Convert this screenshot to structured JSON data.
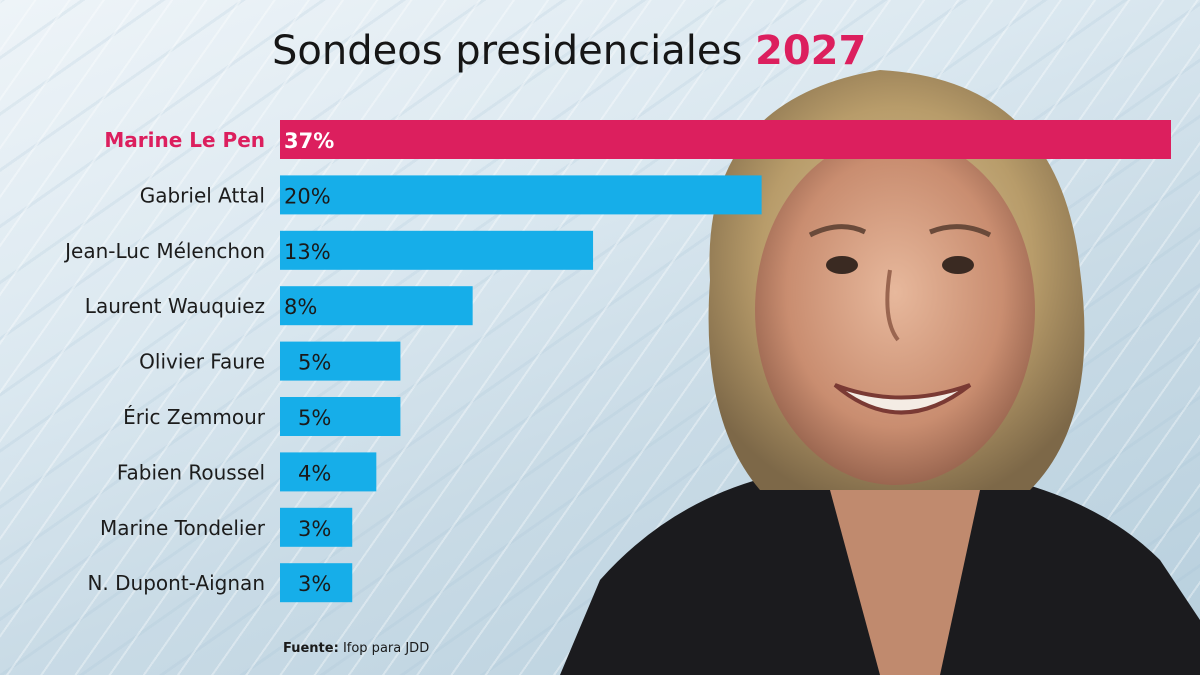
{
  "title": {
    "text": "Sondeos presidenciales",
    "highlight": "2027"
  },
  "source": {
    "label": "Fuente:",
    "text": "Ifop para JDD"
  },
  "colors": {
    "highlight": "#dc1f5e",
    "bar": "#16aee9",
    "label": "#1c1c1c"
  },
  "chart_data": {
    "type": "bar",
    "orientation": "horizontal",
    "categories": [
      "Marine Le Pen",
      "Gabriel Attal",
      "Jean-Luc Mélenchon",
      "Laurent Wauquiez",
      "Olivier Faure",
      "Éric Zemmour",
      "Fabien Roussel",
      "Marine Tondelier",
      "N. Dupont-Aignan"
    ],
    "values": [
      37,
      20,
      13,
      8,
      5,
      5,
      4,
      3,
      3
    ],
    "value_labels": [
      "37%",
      "20%",
      "13%",
      "8%",
      "5%",
      "5%",
      "4%",
      "3%",
      "3%"
    ],
    "highlighted_category": "Marine Le Pen",
    "xlim": [
      0,
      37
    ],
    "grid": false,
    "legend": "none"
  }
}
